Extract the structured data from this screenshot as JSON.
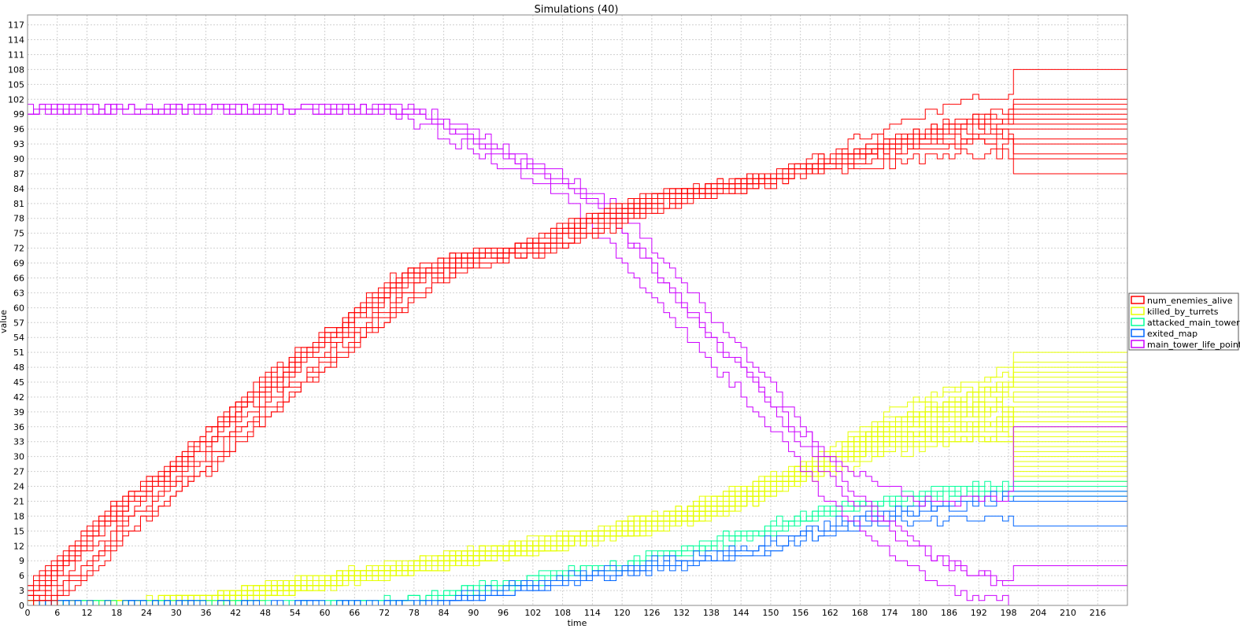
{
  "chart_data": {
    "type": "line",
    "title": "Simulations (40)",
    "xlabel": "time",
    "ylabel": "value",
    "xlim": [
      0,
      222
    ],
    "ylim": [
      0,
      119
    ],
    "x_ticks": [
      0,
      6,
      12,
      18,
      24,
      30,
      36,
      42,
      48,
      54,
      60,
      66,
      72,
      78,
      84,
      90,
      96,
      102,
      108,
      114,
      120,
      126,
      132,
      138,
      144,
      150,
      156,
      162,
      168,
      174,
      180,
      186,
      192,
      198,
      204,
      210,
      216
    ],
    "y_ticks": [
      0,
      3,
      6,
      9,
      12,
      15,
      18,
      21,
      24,
      27,
      30,
      33,
      36,
      39,
      42,
      45,
      48,
      51,
      54,
      57,
      60,
      63,
      66,
      69,
      72,
      75,
      78,
      81,
      84,
      87,
      90,
      93,
      96,
      99,
      102,
      105,
      108,
      111,
      114,
      117
    ],
    "grid": true,
    "legend_position": "right",
    "line_style": "step",
    "simulation_count": 40,
    "series": [
      {
        "name": "num_enemies_alive",
        "color": "#ff0000",
        "x": [
          0,
          6,
          12,
          18,
          24,
          30,
          36,
          42,
          48,
          54,
          60,
          66,
          72,
          78,
          84,
          90,
          96,
          102,
          108,
          114,
          120,
          126,
          132,
          138,
          144,
          150,
          156,
          162,
          168,
          174,
          180,
          186,
          192,
          198,
          222
        ],
        "y": [
          1,
          5,
          11,
          17,
          22,
          26,
          31,
          37,
          42,
          47,
          52,
          56,
          61,
          66,
          68,
          70,
          71,
          72,
          74,
          77,
          79,
          81,
          83,
          84,
          85,
          86,
          87,
          88,
          89,
          91,
          93,
          94,
          96,
          97,
          97
        ],
        "final_values": [
          108,
          102,
          101,
          100,
          99,
          98,
          97,
          96,
          94,
          93,
          91,
          90,
          87
        ]
      },
      {
        "name": "killed_by_turrets",
        "color": "#e6ff00",
        "x": [
          0,
          6,
          12,
          18,
          24,
          30,
          36,
          42,
          48,
          54,
          60,
          66,
          72,
          78,
          84,
          90,
          96,
          102,
          108,
          114,
          120,
          126,
          132,
          138,
          144,
          150,
          156,
          162,
          168,
          174,
          180,
          186,
          192,
          198,
          222
        ],
        "y": [
          0,
          0,
          0,
          0,
          0,
          1,
          1,
          2,
          3,
          4,
          5,
          6,
          7,
          8,
          9,
          10,
          11,
          12,
          13,
          14,
          15,
          17,
          18,
          20,
          22,
          24,
          26,
          28,
          31,
          34,
          36,
          38,
          41,
          43,
          43
        ],
        "final_values": [
          51,
          49,
          48,
          47,
          46,
          45,
          44,
          43,
          42,
          41,
          40,
          39,
          38,
          37,
          36,
          35,
          34,
          33,
          32,
          31,
          30,
          29,
          28,
          27,
          26,
          25
        ]
      },
      {
        "name": "attacked_main_tower",
        "color": "#00ff99",
        "x": [
          0,
          72,
          78,
          84,
          90,
          96,
          102,
          108,
          114,
          120,
          126,
          132,
          138,
          144,
          150,
          156,
          162,
          168,
          174,
          180,
          186,
          192,
          198,
          222
        ],
        "y": [
          0,
          0,
          1,
          2,
          3,
          4,
          5,
          6,
          7,
          8,
          9,
          11,
          12,
          14,
          15,
          17,
          18,
          19,
          20,
          21,
          22,
          23,
          24,
          24
        ],
        "final_values": [
          25,
          24,
          23,
          22
        ]
      },
      {
        "name": "exited_map",
        "color": "#0066ff",
        "x": [
          0,
          78,
          84,
          90,
          96,
          102,
          108,
          114,
          120,
          126,
          132,
          138,
          144,
          150,
          156,
          162,
          168,
          174,
          180,
          186,
          192,
          198,
          222
        ],
        "y": [
          0,
          0,
          1,
          2,
          3,
          4,
          5,
          6,
          7,
          8,
          9,
          10,
          11,
          12,
          14,
          15,
          16,
          17,
          18,
          19,
          21,
          22,
          22
        ],
        "final_values": [
          23,
          22,
          21,
          16
        ]
      },
      {
        "name": "main_tower_life_points",
        "color": "#cc00ff",
        "x": [
          0,
          72,
          78,
          84,
          90,
          96,
          102,
          108,
          114,
          120,
          126,
          132,
          138,
          144,
          150,
          156,
          162,
          168,
          174,
          180,
          186,
          192,
          198,
          222
        ],
        "y": [
          100,
          100,
          99,
          96,
          93,
          90,
          87,
          84,
          80,
          73,
          66,
          59,
          52,
          46,
          39,
          33,
          27,
          22,
          17,
          12,
          8,
          4,
          2,
          2
        ],
        "final_values": [
          36,
          8,
          4,
          0
        ]
      }
    ]
  }
}
